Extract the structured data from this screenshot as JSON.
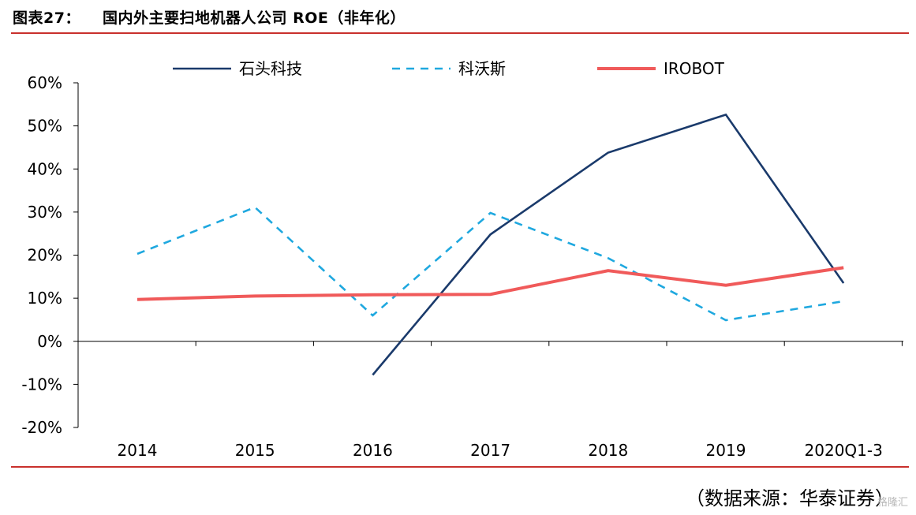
{
  "header": {
    "figure_label": "图表27：",
    "title": "国内外主要扫地机器人公司 ROE（非年化）"
  },
  "footer": {
    "source": "（数据来源：华泰证券）",
    "watermark": "格隆汇"
  },
  "colors": {
    "rule": "#c9302c",
    "axis": "#000000"
  },
  "chart_data": {
    "type": "line",
    "categories": [
      "2014",
      "2015",
      "2016",
      "2017",
      "2018",
      "2019",
      "2020Q1-3"
    ],
    "y_ticks": [
      "60%",
      "50%",
      "40%",
      "30%",
      "20%",
      "10%",
      "0%",
      "-10%",
      "-20%"
    ],
    "ylim": [
      -20,
      60
    ],
    "y_unit": "%",
    "grid": false,
    "legend_position": "top",
    "series": [
      {
        "name": "石头科技",
        "color": "#1a3a6b",
        "style": "solid",
        "values": [
          null,
          null,
          -7.8,
          24.8,
          43.8,
          52.6,
          13.5
        ]
      },
      {
        "name": "科沃斯",
        "color": "#1fa8df",
        "style": "dashed",
        "values": [
          20.3,
          31.1,
          6.0,
          29.8,
          19.3,
          4.9,
          9.3
        ]
      },
      {
        "name": "IROBOT",
        "color": "#f05a5a",
        "style": "solid",
        "values": [
          9.7,
          10.5,
          10.8,
          10.9,
          16.4,
          13.0,
          17.1
        ]
      }
    ]
  }
}
